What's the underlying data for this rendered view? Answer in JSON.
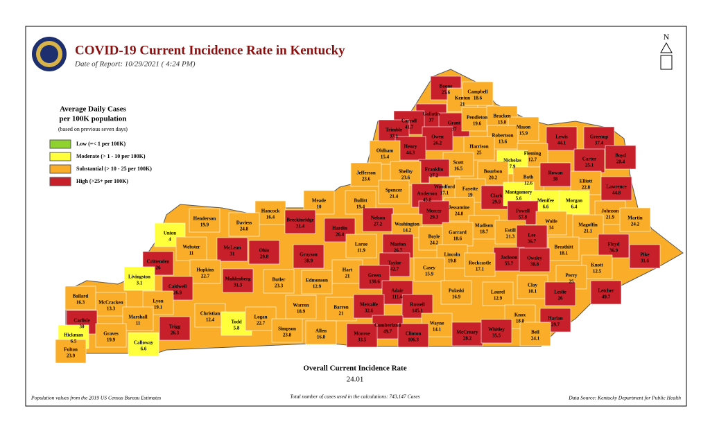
{
  "header": {
    "title": "COVID-19 Current Incidence Rate in Kentucky",
    "date": "Date of Report: 10/29/2021 ( 4:24 PM)"
  },
  "compass": "N",
  "legend": {
    "title": "Average Daily Cases",
    "subtitle": "per 100K population",
    "note": "(based on previous seven days)",
    "items": [
      {
        "label": "Low (=< 1 per 100K)",
        "color": "#8fd22f"
      },
      {
        "label": "Moderate (> 1 - 10 per 100K)",
        "color": "#ffff3b"
      },
      {
        "label": "Substantial (> 10 - 25 per 100K)",
        "color": "#f9ad28"
      },
      {
        "label": "High (>25+ per 100K)",
        "color": "#c8202a"
      }
    ]
  },
  "counties": [
    {
      "name": "Boone",
      "rate": 25.6,
      "color": "#c8202a"
    },
    {
      "name": "Kenton",
      "rate": 21,
      "color": "#f9ad28"
    },
    {
      "name": "Campbell",
      "rate": 18.6,
      "color": "#f9ad28"
    },
    {
      "name": "Gallatin",
      "rate": 37,
      "color": "#c8202a"
    },
    {
      "name": "Carroll",
      "rate": 41.7,
      "color": "#c8202a"
    },
    {
      "name": "Trimble",
      "rate": 37.1,
      "color": "#c8202a"
    },
    {
      "name": "Grant",
      "rate": 37,
      "color": "#c8202a"
    },
    {
      "name": "Pendleton",
      "rate": 19.6,
      "color": "#f9ad28"
    },
    {
      "name": "Bracken",
      "rate": 13.8,
      "color": "#f9ad28"
    },
    {
      "name": "Mason",
      "rate": 15.9,
      "color": "#f9ad28"
    },
    {
      "name": "Robertson",
      "rate": 13.6,
      "color": "#f9ad28"
    },
    {
      "name": "Lewis",
      "rate": 44.1,
      "color": "#c8202a"
    },
    {
      "name": "Greenup",
      "rate": 37.4,
      "color": "#c8202a"
    },
    {
      "name": "Boyd",
      "rate": 28.4,
      "color": "#c8202a"
    },
    {
      "name": "Carter",
      "rate": 25.1,
      "color": "#c8202a"
    },
    {
      "name": "Owen",
      "rate": 26.2,
      "color": "#c8202a"
    },
    {
      "name": "Henry",
      "rate": 44.3,
      "color": "#c8202a"
    },
    {
      "name": "Oldham",
      "rate": 15.4,
      "color": "#f9ad28"
    },
    {
      "name": "Harrison",
      "rate": 25,
      "color": "#f9ad28"
    },
    {
      "name": "Fleming",
      "rate": 12.7,
      "color": "#f9ad28"
    },
    {
      "name": "Nicholas",
      "rate": 7.9,
      "color": "#ffff3b"
    },
    {
      "name": "Scott",
      "rate": 16.5,
      "color": "#f9ad28"
    },
    {
      "name": "Franklin",
      "rate": 27.2,
      "color": "#c8202a"
    },
    {
      "name": "Shelby",
      "rate": 23.6,
      "color": "#f9ad28"
    },
    {
      "name": "Jefferson",
      "rate": 23.6,
      "color": "#f9ad28"
    },
    {
      "name": "Bourbon",
      "rate": 20.2,
      "color": "#f9ad28"
    },
    {
      "name": "Bath",
      "rate": 12.6,
      "color": "#f9ad28"
    },
    {
      "name": "Rowan",
      "rate": 38,
      "color": "#c8202a"
    },
    {
      "name": "Elliott",
      "rate": 22.8,
      "color": "#f9ad28"
    },
    {
      "name": "Lawrence",
      "rate": 44.8,
      "color": "#c8202a"
    },
    {
      "name": "Woodford",
      "rate": 17.1,
      "color": "#f9ad28"
    },
    {
      "name": "Anderson",
      "rate": 45.8,
      "color": "#c8202a"
    },
    {
      "name": "Fayette",
      "rate": 19,
      "color": "#f9ad28"
    },
    {
      "name": "Spencer",
      "rate": 21.4,
      "color": "#f9ad28"
    },
    {
      "name": "Clark",
      "rate": 29.9,
      "color": "#c8202a"
    },
    {
      "name": "Montgomery",
      "rate": 5.6,
      "color": "#ffff3b"
    },
    {
      "name": "Menifee",
      "rate": 6.6,
      "color": "#ffff3b"
    },
    {
      "name": "Morgan",
      "rate": 6.4,
      "color": "#ffff3b"
    },
    {
      "name": "Johnson",
      "rate": 21.9,
      "color": "#f9ad28"
    },
    {
      "name": "Martin",
      "rate": 24.2,
      "color": "#f9ad28"
    },
    {
      "name": "Meade",
      "rate": 10,
      "color": "#f9ad28"
    },
    {
      "name": "Hancock",
      "rate": 16.4,
      "color": "#f9ad28"
    },
    {
      "name": "Bullitt",
      "rate": 19.4,
      "color": "#f9ad28"
    },
    {
      "name": "Jessamine",
      "rate": 24.8,
      "color": "#f9ad28"
    },
    {
      "name": "Mercer",
      "rate": 29.3,
      "color": "#c8202a"
    },
    {
      "name": "Nelson",
      "rate": 27.2,
      "color": "#c8202a"
    },
    {
      "name": "Powell",
      "rate": 57.8,
      "color": "#c8202a"
    },
    {
      "name": "Wolfe",
      "rate": 14,
      "color": "#f9ad28"
    },
    {
      "name": "Magoffin",
      "rate": 21.1,
      "color": "#f9ad28"
    },
    {
      "name": "Henderson",
      "rate": 19.9,
      "color": "#f9ad28"
    },
    {
      "name": "Daviess",
      "rate": 24.8,
      "color": "#f9ad28"
    },
    {
      "name": "Breckinridge",
      "rate": 31.4,
      "color": "#c8202a"
    },
    {
      "name": "Washington",
      "rate": 14.2,
      "color": "#f9ad28"
    },
    {
      "name": "Hardin",
      "rate": 26.4,
      "color": "#c8202a"
    },
    {
      "name": "Madison",
      "rate": 18.7,
      "color": "#f9ad28"
    },
    {
      "name": "Estill",
      "rate": 21.3,
      "color": "#f9ad28"
    },
    {
      "name": "Lee",
      "rate": 36.7,
      "color": "#c8202a"
    },
    {
      "name": "Union",
      "rate": 4,
      "color": "#ffff3b"
    },
    {
      "name": "Boyle",
      "rate": 24.2,
      "color": "#f9ad28"
    },
    {
      "name": "Garrard",
      "rate": 18.6,
      "color": "#f9ad28"
    },
    {
      "name": "Larue",
      "rate": 11.9,
      "color": "#f9ad28"
    },
    {
      "name": "Marion",
      "rate": 26.7,
      "color": "#c8202a"
    },
    {
      "name": "Webster",
      "rate": 11,
      "color": "#f9ad28"
    },
    {
      "name": "McLean",
      "rate": 31,
      "color": "#c8202a"
    },
    {
      "name": "Ohio",
      "rate": 29.8,
      "color": "#c8202a"
    },
    {
      "name": "Breathitt",
      "rate": 18.1,
      "color": "#f9ad28"
    },
    {
      "name": "Floyd",
      "rate": 36.9,
      "color": "#c8202a"
    },
    {
      "name": "Pike",
      "rate": 31.6,
      "color": "#c8202a"
    },
    {
      "name": "Lincoln",
      "rate": 19.8,
      "color": "#f9ad28"
    },
    {
      "name": "Grayson",
      "rate": 38.9,
      "color": "#c8202a"
    },
    {
      "name": "Jackson",
      "rate": 55.7,
      "color": "#c8202a"
    },
    {
      "name": "Owsley",
      "rate": 38.8,
      "color": "#c8202a"
    },
    {
      "name": "Rockcastle",
      "rate": 17.1,
      "color": "#f9ad28"
    },
    {
      "name": "Taylor",
      "rate": 42.7,
      "color": "#c8202a"
    },
    {
      "name": "Crittenden",
      "rate": 26,
      "color": "#c8202a"
    },
    {
      "name": "Hopkins",
      "rate": 22.7,
      "color": "#f9ad28"
    },
    {
      "name": "Knott",
      "rate": 12.5,
      "color": "#f9ad28"
    },
    {
      "name": "Hart",
      "rate": 21,
      "color": "#f9ad28"
    },
    {
      "name": "Casey",
      "rate": 15.9,
      "color": "#f9ad28"
    },
    {
      "name": "Perry",
      "rate": 25,
      "color": "#f9ad28"
    },
    {
      "name": "Green",
      "rate": 130.6,
      "color": "#c8202a"
    },
    {
      "name": "Muhlenberg",
      "rate": 31.3,
      "color": "#c8202a"
    },
    {
      "name": "Butler",
      "rate": 23.3,
      "color": "#f9ad28"
    },
    {
      "name": "Edmonson",
      "rate": 12.9,
      "color": "#f9ad28"
    },
    {
      "name": "Livingston",
      "rate": 3.1,
      "color": "#ffff3b"
    },
    {
      "name": "Caldwell",
      "rate": 26.9,
      "color": "#c8202a"
    },
    {
      "name": "Clay",
      "rate": 10.1,
      "color": "#f9ad28"
    },
    {
      "name": "Leslie",
      "rate": 26,
      "color": "#c8202a"
    },
    {
      "name": "Letcher",
      "rate": 49.7,
      "color": "#c8202a"
    },
    {
      "name": "Adair",
      "rate": 111.6,
      "color": "#c8202a"
    },
    {
      "name": "Pulaski",
      "rate": 16.9,
      "color": "#f9ad28"
    },
    {
      "name": "Laurel",
      "rate": 12.9,
      "color": "#f9ad28"
    },
    {
      "name": "Ballard",
      "rate": 16.3,
      "color": "#f9ad28"
    },
    {
      "name": "McCracken",
      "rate": 13.3,
      "color": "#f9ad28"
    },
    {
      "name": "Lyon",
      "rate": 19.1,
      "color": "#f9ad28"
    },
    {
      "name": "Warren",
      "rate": 18.9,
      "color": "#f9ad28"
    },
    {
      "name": "Barren",
      "rate": 21,
      "color": "#f9ad28"
    },
    {
      "name": "Metcalfe",
      "rate": 32.6,
      "color": "#c8202a"
    },
    {
      "name": "Russell",
      "rate": 145.1,
      "color": "#c8202a"
    },
    {
      "name": "Christian",
      "rate": 12.4,
      "color": "#f9ad28"
    },
    {
      "name": "Marshall",
      "rate": 11,
      "color": "#f9ad28"
    },
    {
      "name": "Todd",
      "rate": 5.8,
      "color": "#ffff3b"
    },
    {
      "name": "Logan",
      "rate": 22.7,
      "color": "#f9ad28"
    },
    {
      "name": "Knox",
      "rate": 18.8,
      "color": "#f9ad28"
    },
    {
      "name": "Harlan",
      "rate": 29.7,
      "color": "#c8202a"
    },
    {
      "name": "Carlisle",
      "rate": 30,
      "color": "#c8202a"
    },
    {
      "name": "Cumberland",
      "rate": 49.7,
      "color": "#c8202a"
    },
    {
      "name": "Wayne",
      "rate": 14.1,
      "color": "#f9ad28"
    },
    {
      "name": "Bell",
      "rate": 24.1,
      "color": "#f9ad28"
    },
    {
      "name": "Trigg",
      "rate": 26.3,
      "color": "#c8202a"
    },
    {
      "name": "Simpson",
      "rate": 23.8,
      "color": "#f9ad28"
    },
    {
      "name": "Allen",
      "rate": 16.8,
      "color": "#f9ad28"
    },
    {
      "name": "Monroe",
      "rate": 33.5,
      "color": "#c8202a"
    },
    {
      "name": "Clinton",
      "rate": 106.3,
      "color": "#c8202a"
    },
    {
      "name": "McCreary",
      "rate": 28.2,
      "color": "#c8202a"
    },
    {
      "name": "Whitley",
      "rate": 35.5,
      "color": "#c8202a"
    },
    {
      "name": "Graves",
      "rate": 19.9,
      "color": "#f9ad28"
    },
    {
      "name": "Hickman",
      "rate": 6.5,
      "color": "#ffff3b"
    },
    {
      "name": "Calloway",
      "rate": 6.6,
      "color": "#ffff3b"
    },
    {
      "name": "Fulton",
      "rate": 23.9,
      "color": "#f9ad28"
    }
  ],
  "summary": {
    "title": "Overall Current Incidence Rate",
    "value": 24.01
  },
  "footer": {
    "left": "Population values from the 2019 US Census Bureau Estimates",
    "center": "Total number of cases used in the calculations: 743,147 Cases",
    "right": "Data Source: Kentucky Department for Public Health"
  }
}
